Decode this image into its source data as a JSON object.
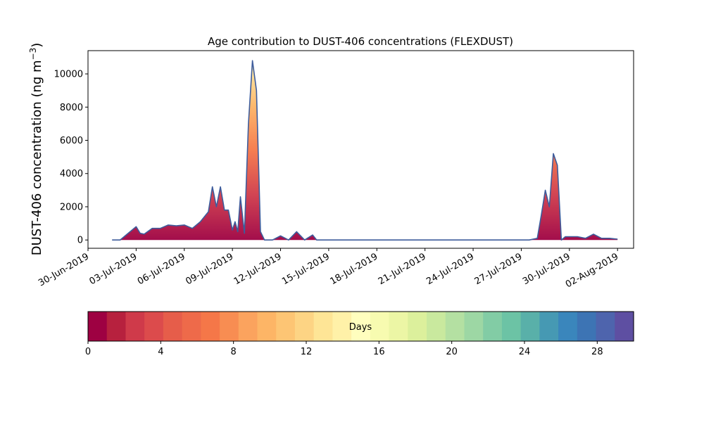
{
  "chart_data": {
    "type": "area",
    "title": "Age contribution to DUST-406 concentrations (FLEXDUST)",
    "ylabel_main": "DUST-406 concentration (ng m",
    "ylabel_sup": "−3",
    "ylabel_close": ")",
    "xlabel": "",
    "ylim": [
      -500,
      11400
    ],
    "xlim": [
      "2019-06-30T00:00",
      "2019-08-03T00:00"
    ],
    "y_ticks": [
      0,
      2000,
      4000,
      6000,
      8000,
      10000
    ],
    "y_tick_labels": [
      "0",
      "2000",
      "4000",
      "6000",
      "8000",
      "10000"
    ],
    "x_ticks": [
      "2019-06-30",
      "2019-07-03",
      "2019-07-06",
      "2019-07-09",
      "2019-07-12",
      "2019-07-15",
      "2019-07-18",
      "2019-07-21",
      "2019-07-24",
      "2019-07-27",
      "2019-07-30",
      "2019-08-02"
    ],
    "x_tick_labels": [
      "30-Jun-2019",
      "03-Jul-2019",
      "06-Jul-2019",
      "09-Jul-2019",
      "12-Jul-2019",
      "15-Jul-2019",
      "18-Jul-2019",
      "21-Jul-2019",
      "24-Jul-2019",
      "27-Jul-2019",
      "30-Jul-2019",
      "02-Aug-2019"
    ],
    "grid": false,
    "line_color": "#3d5c9c",
    "total": {
      "x": [
        "2019-07-01T12:00",
        "2019-07-02T00:00",
        "2019-07-02T12:00",
        "2019-07-03T00:00",
        "2019-07-03T06:00",
        "2019-07-03T12:00",
        "2019-07-04T00:00",
        "2019-07-04T12:00",
        "2019-07-05T00:00",
        "2019-07-05T12:00",
        "2019-07-06T00:00",
        "2019-07-06T12:00",
        "2019-07-07T00:00",
        "2019-07-07T12:00",
        "2019-07-07T18:00",
        "2019-07-08T00:00",
        "2019-07-08T06:00",
        "2019-07-08T12:00",
        "2019-07-08T18:00",
        "2019-07-09T00:00",
        "2019-07-09T04:00",
        "2019-07-09T08:00",
        "2019-07-09T12:00",
        "2019-07-09T18:00",
        "2019-07-10T00:00",
        "2019-07-10T06:00",
        "2019-07-10T12:00",
        "2019-07-10T18:00",
        "2019-07-11T00:00",
        "2019-07-11T06:00",
        "2019-07-11T12:00",
        "2019-07-12T00:00",
        "2019-07-12T12:00",
        "2019-07-13T00:00",
        "2019-07-13T12:00",
        "2019-07-14T00:00",
        "2019-07-14T06:00",
        "2019-07-14T12:00",
        "2019-07-15T00:00",
        "2019-07-15T12:00",
        "2019-07-16T00:00",
        "2019-07-17T00:00",
        "2019-07-18T00:00",
        "2019-07-19T00:00",
        "2019-07-20T00:00",
        "2019-07-21T00:00",
        "2019-07-22T00:00",
        "2019-07-23T00:00",
        "2019-07-24T00:00",
        "2019-07-25T00:00",
        "2019-07-26T00:00",
        "2019-07-27T00:00",
        "2019-07-27T12:00",
        "2019-07-28T00:00",
        "2019-07-28T06:00",
        "2019-07-28T12:00",
        "2019-07-28T18:00",
        "2019-07-29T00:00",
        "2019-07-29T06:00",
        "2019-07-29T12:00",
        "2019-07-29T18:00",
        "2019-07-30T00:00",
        "2019-07-30T12:00",
        "2019-07-31T00:00",
        "2019-07-31T12:00",
        "2019-08-01T00:00",
        "2019-08-01T12:00",
        "2019-08-02T00:00"
      ],
      "y": [
        0,
        0,
        400,
        800,
        400,
        350,
        700,
        700,
        900,
        850,
        900,
        700,
        1100,
        1700,
        3200,
        2000,
        3200,
        1800,
        1800,
        600,
        1100,
        500,
        2600,
        400,
        7000,
        10800,
        9000,
        500,
        0,
        0,
        0,
        250,
        0,
        500,
        0,
        300,
        0,
        0,
        0,
        0,
        0,
        0,
        0,
        0,
        0,
        0,
        0,
        0,
        0,
        0,
        0,
        0,
        0,
        100,
        1500,
        3000,
        2000,
        5200,
        4500,
        0,
        200,
        200,
        200,
        100,
        350,
        100,
        100,
        50
      ]
    },
    "colorbar": {
      "label": "Days",
      "range": [
        0,
        30
      ],
      "ticks": [
        0,
        4,
        8,
        12,
        16,
        20,
        24,
        28
      ],
      "tick_labels": [
        "0",
        "4",
        "8",
        "12",
        "16",
        "20",
        "24",
        "28"
      ],
      "colors": [
        "#9e0142",
        "#b7213e",
        "#cf3a4a",
        "#dc4b4c",
        "#e65d4a",
        "#ee6a4a",
        "#f57748",
        "#f88d52",
        "#fba35e",
        "#fdb566",
        "#fdc574",
        "#fdd484",
        "#fee596",
        "#fff1a8",
        "#fffebe",
        "#f7fbb0",
        "#ecf6a5",
        "#dcf09c",
        "#c9e99e",
        "#b4e0a2",
        "#9dd7a4",
        "#82cca5",
        "#6cc3a5",
        "#59b0a9",
        "#4699b3",
        "#3a86bc",
        "#3d74b4",
        "#4e64ad",
        "#5e4fa2"
      ]
    }
  }
}
